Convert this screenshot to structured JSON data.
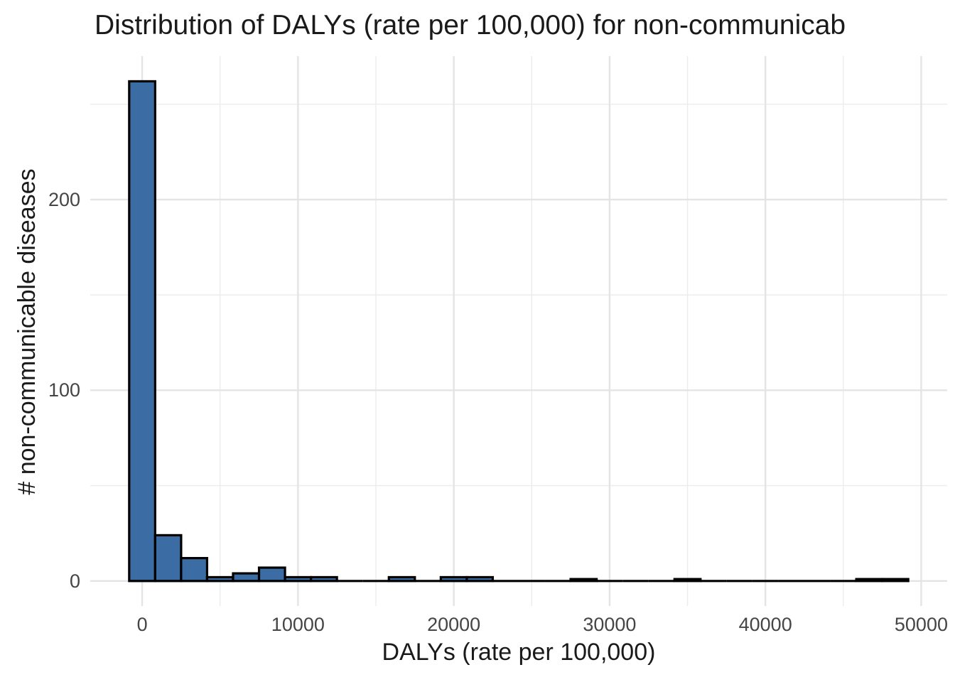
{
  "chart": {
    "title": "Distribution of DALYs (rate per 100,000) for non-communicab",
    "xlabel": "DALYs (rate per 100,000)",
    "ylabel": "# non-communicable diseases"
  },
  "chart_data": {
    "type": "bar",
    "subtype": "histogram",
    "title": "Distribution of DALYs (rate per 100,000) for non-communicab",
    "xlabel": "DALYs (rate per 100,000)",
    "ylabel": "# non-communicable diseases",
    "bin_width": 1666.67,
    "bin_centers": [
      0,
      1667,
      3333,
      5000,
      6667,
      8333,
      10000,
      11667,
      13333,
      15000,
      16667,
      18333,
      20000,
      21667,
      23333,
      25000,
      26667,
      28333,
      30000,
      31667,
      33333,
      35000,
      36667,
      38333,
      40000,
      41667,
      43333,
      45000,
      46667,
      48333
    ],
    "counts": [
      262,
      24,
      12,
      2,
      4,
      7,
      2,
      2,
      0,
      0,
      2,
      0,
      2,
      2,
      0,
      0,
      0,
      1,
      0,
      0,
      0,
      1,
      0,
      0,
      0,
      0,
      0,
      0,
      1,
      1
    ],
    "x_ticks": [
      0,
      10000,
      20000,
      30000,
      40000,
      50000
    ],
    "x_tick_labels": [
      "0",
      "10000",
      "20000",
      "30000",
      "40000",
      "50000"
    ],
    "x_minor_ticks": [
      5000,
      15000,
      25000,
      35000,
      45000
    ],
    "y_ticks": [
      0,
      100,
      200
    ],
    "y_tick_labels": [
      "0",
      "100",
      "200"
    ],
    "y_minor_ticks": [
      50,
      150,
      250
    ],
    "xlim": [
      -3333,
      51667
    ],
    "ylim": [
      -13.1,
      275.2
    ],
    "legend": "none",
    "grid": true,
    "colors": {
      "bar_fill": "#3B6DA4",
      "bar_stroke": "#000000",
      "grid_major": "#E4E4E4",
      "grid_minor": "#ECECEC",
      "tick_label": "#454545",
      "title_text": "#1A1A1A",
      "background": "#FFFFFF"
    }
  }
}
